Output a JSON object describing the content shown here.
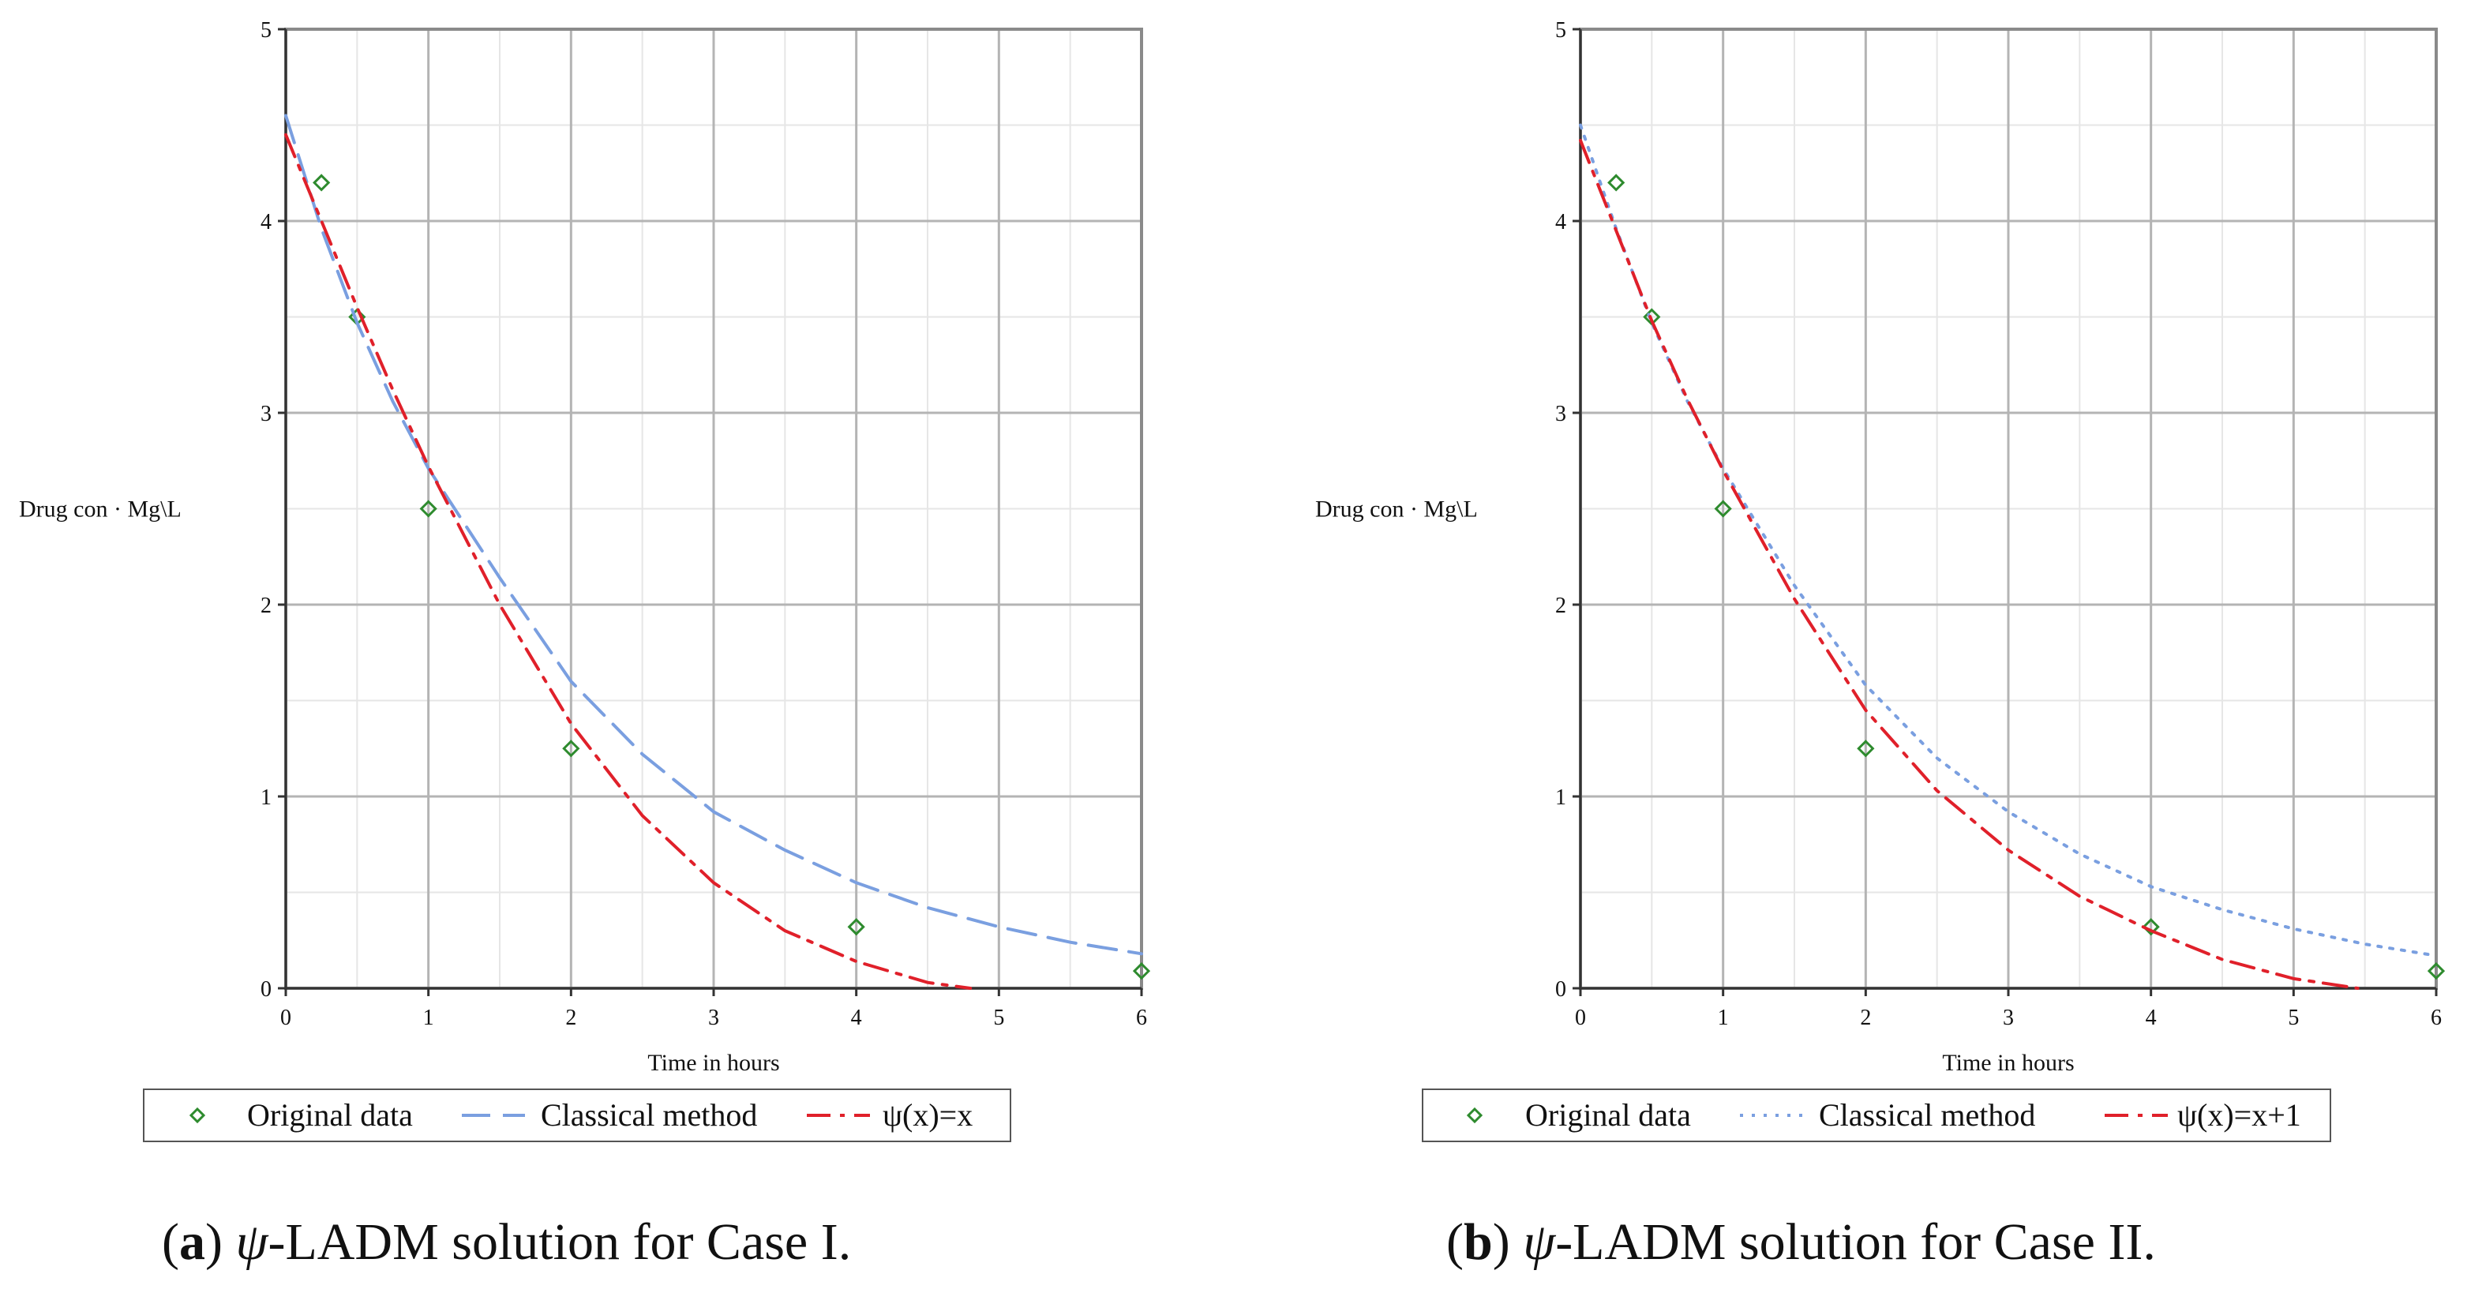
{
  "chart_data": [
    {
      "type": "line",
      "xlabel": "Time in hours",
      "ylabel": "Drug con · Mg\\L",
      "xlim": [
        0,
        6
      ],
      "ylim": [
        0,
        5
      ],
      "xticks": [
        0,
        1,
        2,
        3,
        4,
        5,
        6
      ],
      "yticks": [
        0,
        1,
        2,
        3,
        4,
        5
      ],
      "grid": true,
      "caption": {
        "letter": "a",
        "psi": "ψ",
        "text": "-LADM solution for Case I."
      },
      "legend": {
        "position": "bottom",
        "items": [
          "Original data",
          "Classical method",
          "ψ(x)=x"
        ]
      },
      "series": [
        {
          "name": "Original data",
          "style": "markers",
          "color": "#2e8b2e",
          "x": [
            0.25,
            0.5,
            1,
            2,
            4,
            6
          ],
          "y": [
            4.2,
            3.5,
            2.5,
            1.25,
            0.32,
            0.09
          ]
        },
        {
          "name": "Classical method",
          "style": "dashed",
          "color": "#7a9fe0",
          "x": [
            0,
            0.25,
            0.5,
            0.75,
            1,
            1.5,
            2,
            2.5,
            3,
            3.5,
            4,
            4.5,
            5,
            5.5,
            6
          ],
          "y": [
            4.55,
            3.96,
            3.47,
            3.06,
            2.71,
            2.14,
            1.6,
            1.22,
            0.92,
            0.72,
            0.55,
            0.42,
            0.32,
            0.24,
            0.18
          ]
        },
        {
          "name": "ψ(x)=x",
          "style": "dashdot",
          "color": "#e0202a",
          "x": [
            0,
            0.25,
            0.5,
            0.75,
            1,
            1.5,
            2,
            2.5,
            3,
            3.5,
            4,
            4.5,
            4.8
          ],
          "y": [
            4.45,
            4.0,
            3.55,
            3.12,
            2.72,
            2.0,
            1.38,
            0.9,
            0.55,
            0.3,
            0.14,
            0.03,
            0.0
          ]
        }
      ]
    },
    {
      "type": "line",
      "xlabel": "Time in hours",
      "ylabel": "Drug con · Mg\\L",
      "xlim": [
        0,
        6
      ],
      "ylim": [
        0,
        5
      ],
      "xticks": [
        0,
        1,
        2,
        3,
        4,
        5,
        6
      ],
      "yticks": [
        0,
        1,
        2,
        3,
        4,
        5
      ],
      "grid": true,
      "caption": {
        "letter": "b",
        "psi": "ψ",
        "text": "-LADM solution for Case II."
      },
      "legend": {
        "position": "bottom",
        "items": [
          "Original data",
          "Classical method",
          "ψ(x)=x+1"
        ]
      },
      "series": [
        {
          "name": "Original data",
          "style": "markers",
          "color": "#2e8b2e",
          "x": [
            0.25,
            0.5,
            1,
            2,
            4,
            6
          ],
          "y": [
            4.2,
            3.5,
            2.5,
            1.25,
            0.32,
            0.09
          ]
        },
        {
          "name": "Classical method",
          "style": "dotted",
          "color": "#7a9fe0",
          "x": [
            0,
            0.25,
            0.5,
            0.75,
            1,
            1.5,
            2,
            2.5,
            3,
            3.5,
            4,
            4.5,
            5,
            5.5,
            6
          ],
          "y": [
            4.5,
            3.96,
            3.47,
            3.06,
            2.71,
            2.1,
            1.58,
            1.2,
            0.92,
            0.7,
            0.53,
            0.41,
            0.31,
            0.23,
            0.17
          ]
        },
        {
          "name": "ψ(x)=x+1",
          "style": "dashdot",
          "color": "#e0202a",
          "x": [
            0,
            0.25,
            0.5,
            0.75,
            1,
            1.5,
            2,
            2.5,
            3,
            3.5,
            4,
            4.5,
            5,
            5.45
          ],
          "y": [
            4.42,
            3.95,
            3.48,
            3.07,
            2.7,
            2.03,
            1.45,
            1.03,
            0.72,
            0.48,
            0.3,
            0.15,
            0.05,
            0.0
          ]
        }
      ]
    }
  ]
}
